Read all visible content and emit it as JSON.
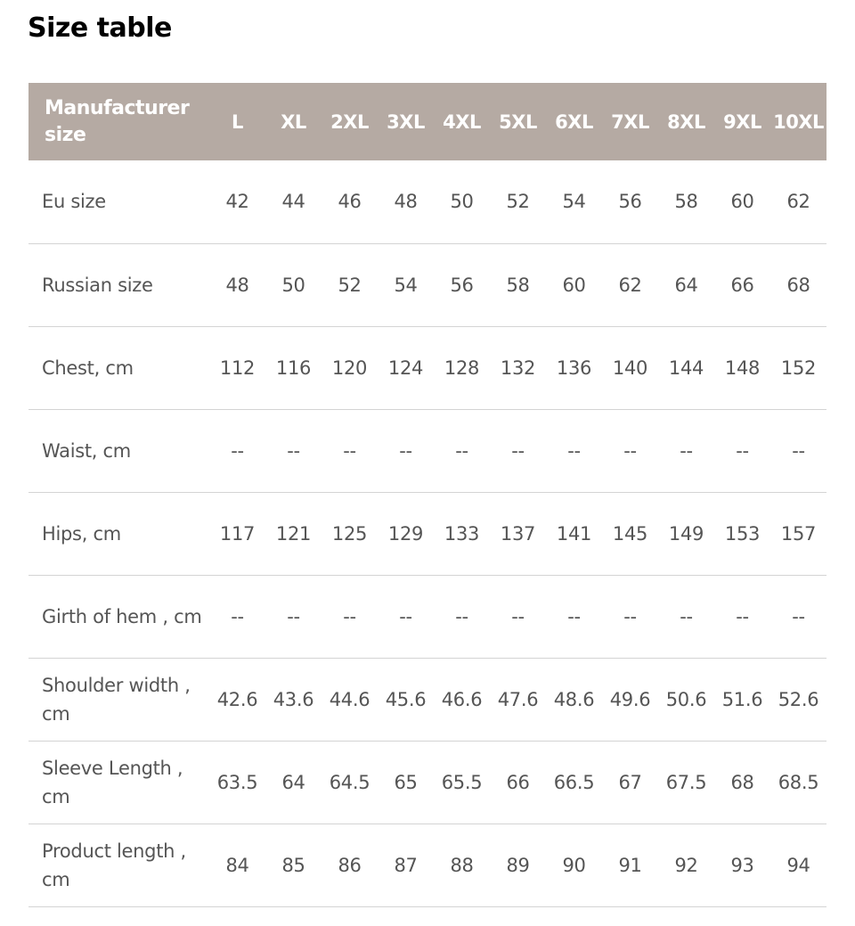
{
  "page": {
    "title": "Size table"
  },
  "table": {
    "header_label": "Manufacturer size",
    "sizes": [
      "L",
      "XL",
      "2XL",
      "3XL",
      "4XL",
      "5XL",
      "6XL",
      "7XL",
      "8XL",
      "9XL",
      "10XL"
    ],
    "rows": [
      {
        "label": "Eu size",
        "values": [
          "42",
          "44",
          "46",
          "48",
          "50",
          "52",
          "54",
          "56",
          "58",
          "60",
          "62"
        ]
      },
      {
        "label": "Russian size",
        "values": [
          "48",
          "50",
          "52",
          "54",
          "56",
          "58",
          "60",
          "62",
          "64",
          "66",
          "68"
        ]
      },
      {
        "label": "Chest, cm",
        "values": [
          "112",
          "116",
          "120",
          "124",
          "128",
          "132",
          "136",
          "140",
          "144",
          "148",
          "152"
        ]
      },
      {
        "label": "Waist, cm",
        "values": [
          "--",
          "--",
          "--",
          "--",
          "--",
          "--",
          "--",
          "--",
          "--",
          "--",
          "--"
        ]
      },
      {
        "label": "Hips,  cm",
        "values": [
          "117",
          "121",
          "125",
          "129",
          "133",
          "137",
          "141",
          "145",
          "149",
          "153",
          "157"
        ]
      },
      {
        "label": "Girth of hem , cm",
        "values": [
          "--",
          "--",
          "--",
          "--",
          "--",
          "--",
          "--",
          "--",
          "--",
          "--",
          "--"
        ]
      },
      {
        "label": "Shoulder width , cm",
        "values": [
          "42.6",
          "43.6",
          "44.6",
          "45.6",
          "46.6",
          "47.6",
          "48.6",
          "49.6",
          "50.6",
          "51.6",
          "52.6"
        ]
      },
      {
        "label": "Sleeve Length , cm",
        "values": [
          "63.5",
          "64",
          "64.5",
          "65",
          "65.5",
          "66",
          "66.5",
          "67",
          "67.5",
          "68",
          "68.5"
        ]
      },
      {
        "label": "Product length , cm",
        "values": [
          "84",
          "85",
          "86",
          "87",
          "88",
          "89",
          "90",
          "91",
          "92",
          "93",
          "94"
        ]
      }
    ]
  },
  "colors": {
    "header_bg": "#b5aaa3",
    "header_text": "#ffffff",
    "body_text": "#555555",
    "row_divider": "#d4d4d4",
    "title_text": "#000000"
  }
}
